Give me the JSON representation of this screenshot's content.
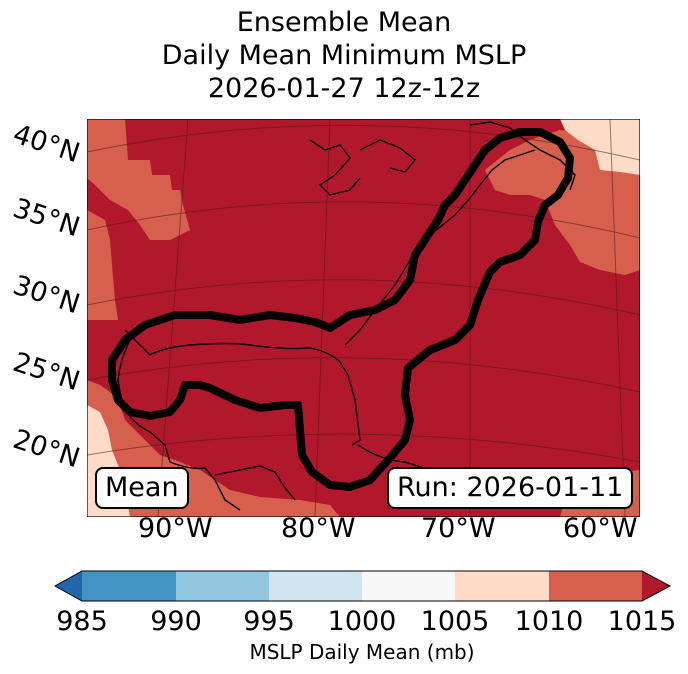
{
  "title": {
    "line1": "Ensemble Mean",
    "line2": "Daily Mean Minimum MSLP",
    "line3": "2026-01-27 12z-12z"
  },
  "map": {
    "lat_labels": [
      "40°N",
      "35°N",
      "30°N",
      "25°N",
      "20°N"
    ],
    "lon_labels": [
      "90°W",
      "80°W",
      "70°W",
      "60°W"
    ],
    "mean_label": "Mean",
    "run_label": "Run: 2026-01-11",
    "colors": {
      "dark_red": "#b2182b",
      "red": "#d6604d",
      "light_red": "#fddbc7",
      "contour": "#000000",
      "coast": "#000000"
    }
  },
  "colorbar": {
    "ticks": [
      "985",
      "990",
      "995",
      "1000",
      "1005",
      "1010",
      "1015"
    ],
    "colors": [
      "#2166ac",
      "#4393c3",
      "#92c5de",
      "#d1e5f0",
      "#f7f7f7",
      "#fddbc7",
      "#d6604d",
      "#b2182b"
    ],
    "label": "MSLP Daily Mean (mb)"
  }
}
